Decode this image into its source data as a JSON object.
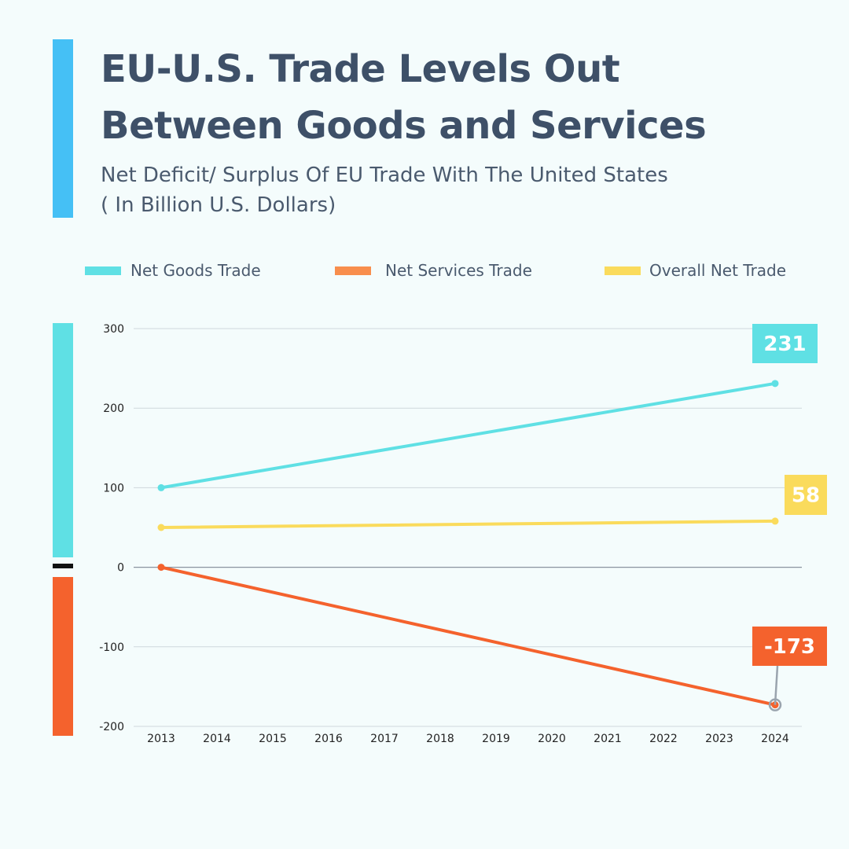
{
  "header": {
    "title_line1": "EU-U.S. Trade Levels Out",
    "title_line2": "Between Goods and Services",
    "subtitle_line1": "Net Deficit/ Surplus Of EU Trade With The United States",
    "subtitle_line2": "( In Billion U.S. Dollars)"
  },
  "colors": {
    "accent": "#45c0f5",
    "goods": "#5fe0e4",
    "services": "#f4622d",
    "overall": "#fadb5c",
    "legend_services": "#f88e4d",
    "positive_bar": "#5fe0e4",
    "negative_bar": "#f4622d"
  },
  "legend": [
    {
      "label": "Net Goods Trade",
      "color": "#5fe0e4"
    },
    {
      "label": "Net Services Trade",
      "color": "#f88e4d"
    },
    {
      "label": "Overall Net Trade",
      "color": "#fadb5c"
    }
  ],
  "chart_data": {
    "type": "line",
    "title": "EU-U.S. Trade Levels Out Between Goods and Services",
    "subtitle": "Net Deficit/ Surplus Of EU Trade With The United States ( In Billion U.S. Dollars)",
    "xlabel": "",
    "ylabel": "",
    "ylim": [
      -200,
      300
    ],
    "yticks": [
      300,
      200,
      100,
      0,
      -100,
      -200
    ],
    "grid": true,
    "legend_position": "top",
    "categories": [
      "2013",
      "2014",
      "2015",
      "2016",
      "2017",
      "2018",
      "2019",
      "2020",
      "2021",
      "2022",
      "2023",
      "2024"
    ],
    "series": [
      {
        "name": "Net Goods Trade",
        "color": "#5fe0e4",
        "points": [
          {
            "x": "2013",
            "y": 100
          },
          {
            "x": "2024",
            "y": 231
          }
        ]
      },
      {
        "name": "Net Services Trade",
        "color": "#f4622d",
        "points": [
          {
            "x": "2013",
            "y": 0
          },
          {
            "x": "2024",
            "y": -173
          }
        ]
      },
      {
        "name": "Overall Net Trade",
        "color": "#fadb5c",
        "points": [
          {
            "x": "2013",
            "y": 50
          },
          {
            "x": "2024",
            "y": 58
          }
        ]
      }
    ],
    "annotations": [
      {
        "series": "Net Goods Trade",
        "text": "231",
        "color": "#5fe0e4"
      },
      {
        "series": "Overall Net Trade",
        "text": "58",
        "color": "#fadb5c"
      },
      {
        "series": "Net Services Trade",
        "text": "-173",
        "color": "#f4622d"
      }
    ]
  }
}
